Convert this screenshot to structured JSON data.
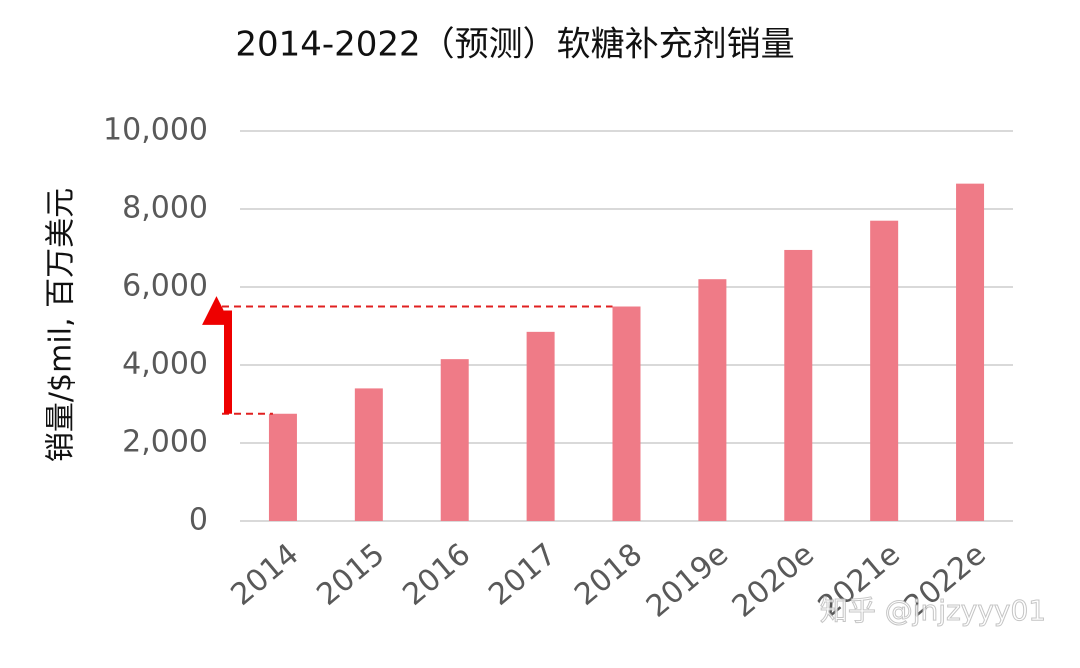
{
  "chart_data": {
    "type": "bar",
    "title": "2014-2022（预测）软糖补充剂销量",
    "y_label": "销量/$mil, 百万美元",
    "categories": [
      "2014",
      "2015",
      "2016",
      "2017",
      "2018",
      "2019e",
      "2020e",
      "2021e",
      "2022e"
    ],
    "values": [
      2750,
      3400,
      4150,
      4850,
      5500,
      6200,
      6950,
      7700,
      8650
    ],
    "color": "#ef7b87",
    "ylim": [
      0,
      10000
    ],
    "yticks": [
      0,
      {
        "value": 2000,
        "label": "2,000"
      },
      {
        "value": 4000,
        "label": "4,000"
      },
      {
        "value": 6000,
        "label": "6,000"
      },
      {
        "value": 8000,
        "label": "8,000"
      },
      {
        "value": 10000,
        "label": "10,000"
      }
    ],
    "grid": true,
    "watermark": "知乎 @jnjzyyy01"
  }
}
